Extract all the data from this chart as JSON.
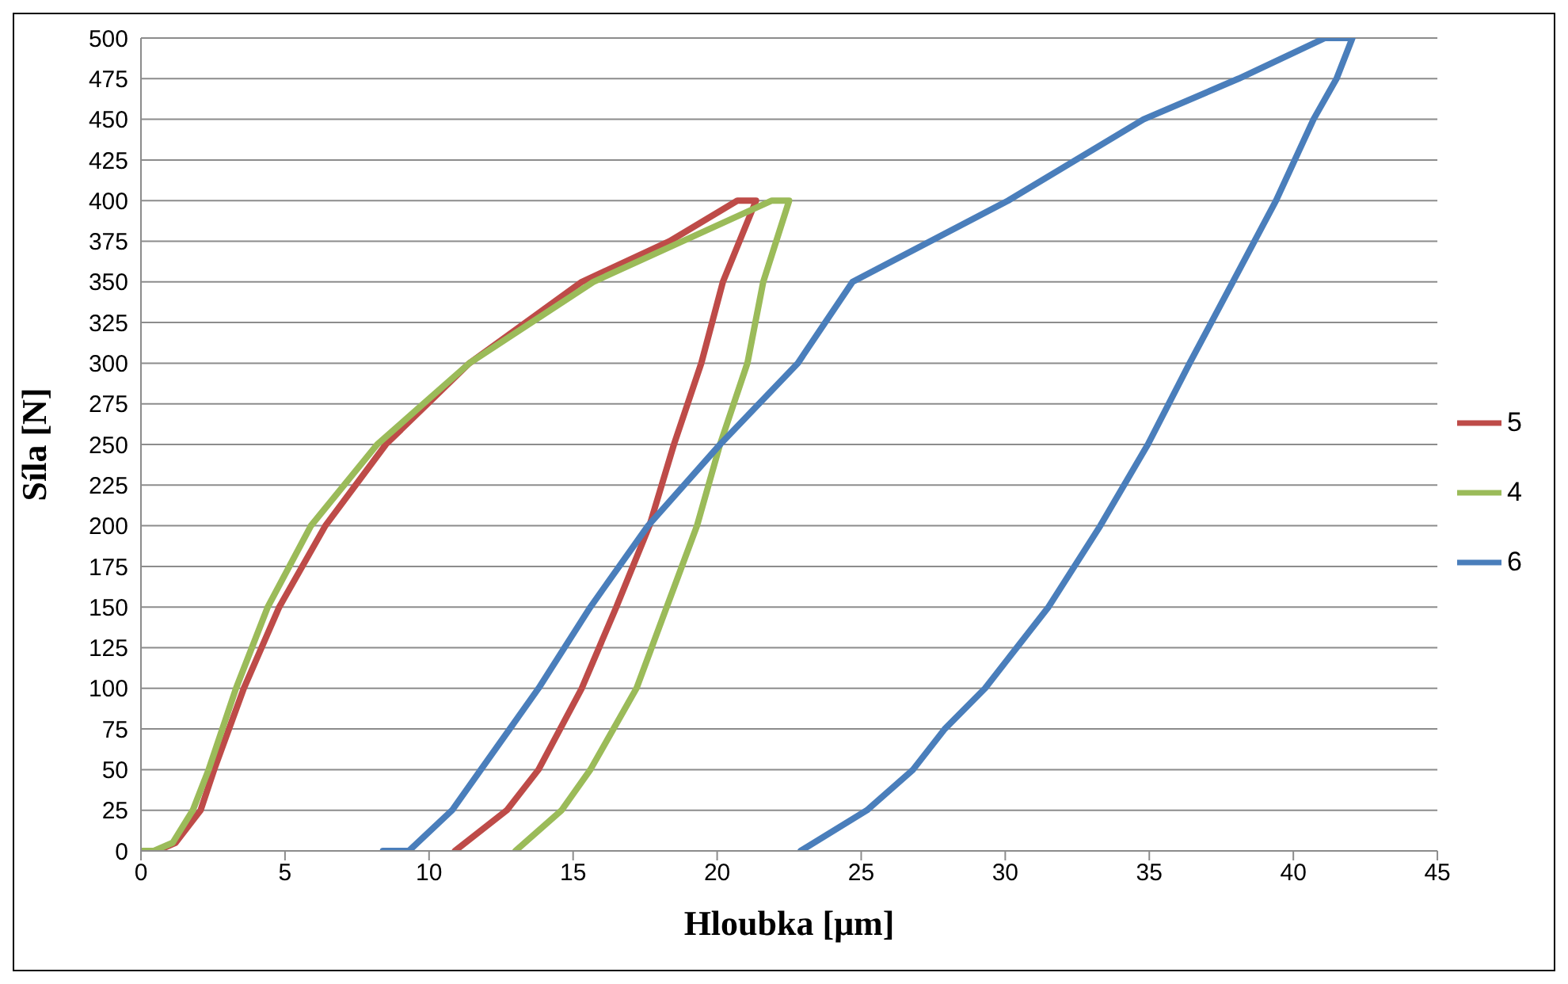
{
  "chart_data": {
    "type": "line",
    "xlabel": "Hloubka [μm]",
    "ylabel": "Síla [N]",
    "xlim": [
      0,
      45
    ],
    "xticks": [
      0,
      5,
      10,
      15,
      20,
      25,
      30,
      35,
      40,
      45
    ],
    "ylim": [
      0,
      500
    ],
    "yticks": [
      0,
      25,
      50,
      75,
      100,
      125,
      150,
      175,
      200,
      225,
      250,
      275,
      300,
      325,
      350,
      375,
      400,
      425,
      450,
      475,
      500
    ],
    "grid": "y",
    "legend": "right",
    "marker": "none",
    "line_style": "solid",
    "series": [
      {
        "name": "5",
        "color": "#be4b48",
        "x": [
          0,
          0.56,
          1.2,
          2.07,
          2.54,
          3.57,
          4.8,
          6.4,
          8.5,
          11.4,
          15.3,
          18.35,
          20.7,
          21.35,
          20.2,
          19.45,
          18.5,
          17.65,
          16.5,
          15.3,
          13.8,
          12.7,
          10.9
        ],
        "values": [
          0,
          0,
          5,
          25,
          50,
          100,
          150,
          200,
          250,
          300,
          350,
          375,
          400,
          400,
          350,
          300,
          250,
          200,
          150,
          100,
          50,
          25,
          0
        ]
      },
      {
        "name": "4",
        "color": "#9bbb59",
        "x": [
          0,
          0.45,
          1.1,
          1.8,
          2.35,
          3.3,
          4.4,
          5.9,
          8.2,
          11.4,
          15.7,
          21.9,
          22.5,
          21.6,
          21.05,
          20.1,
          19.3,
          18.25,
          17.2,
          15.6,
          14.6,
          13.0
        ],
        "values": [
          0,
          0,
          5,
          25,
          50,
          100,
          150,
          200,
          250,
          300,
          350,
          400,
          400,
          350,
          300,
          250,
          200,
          150,
          100,
          50,
          25,
          0
        ]
      },
      {
        "name": "6",
        "color": "#4a7ebb",
        "x": [
          8.4,
          9.3,
          10.8,
          11.8,
          12.8,
          13.8,
          15.6,
          17.6,
          20.1,
          22.8,
          24.7,
          30.1,
          34.8,
          38.1,
          41.1,
          42.05,
          41.5,
          40.7,
          39.4,
          37.9,
          36.4,
          34.95,
          33.3,
          31.5,
          29.3,
          27.9,
          26.8,
          25.2,
          22.9
        ],
        "values": [
          0,
          0,
          25,
          50,
          75,
          100,
          150,
          200,
          250,
          300,
          350,
          400,
          450,
          475,
          500,
          500,
          475,
          450,
          400,
          350,
          300,
          250,
          200,
          150,
          100,
          75,
          50,
          25,
          0
        ]
      }
    ]
  }
}
